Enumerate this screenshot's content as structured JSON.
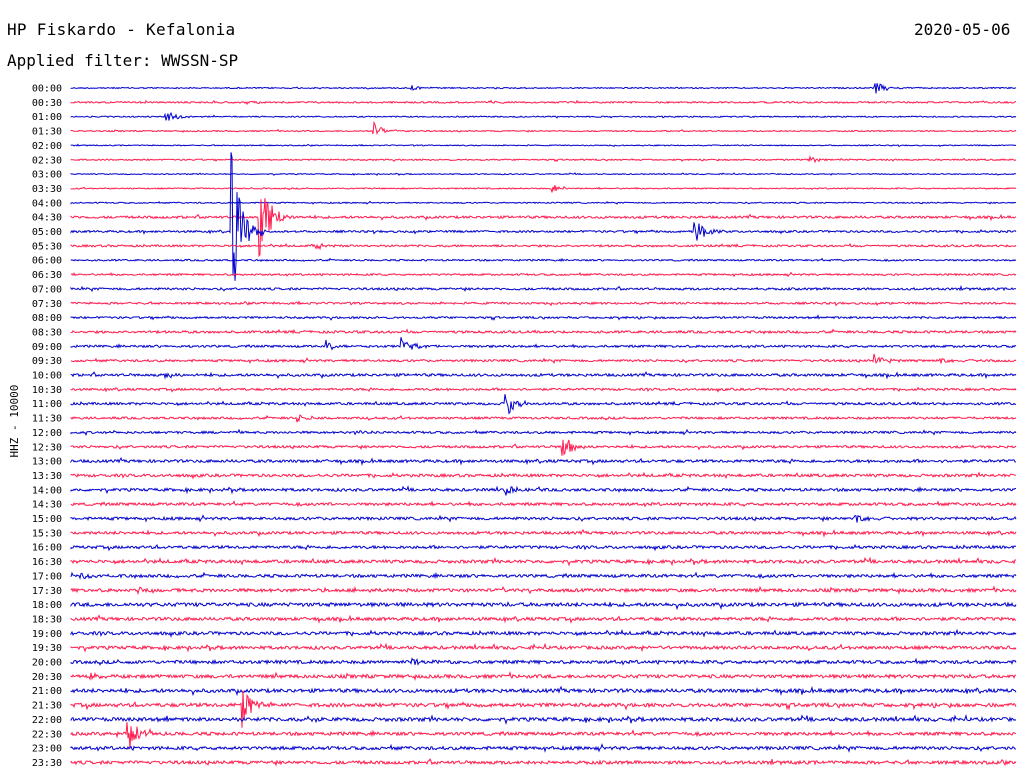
{
  "header": {
    "station": "HP Fiskardo - Kefalonia",
    "date": "2020-05-06",
    "filter": "Applied filter: WWSSN-SP",
    "channel": "HHZ - 10000"
  },
  "colors": {
    "odd": "#0000cc",
    "even": "#ff1a4d"
  },
  "chart_data": {
    "type": "line",
    "title": "HP Fiskardo - Kefalonia",
    "ylabel": "HHZ - 10000",
    "categories": [
      "00:00",
      "00:30",
      "01:00",
      "01:30",
      "02:00",
      "02:30",
      "03:00",
      "03:30",
      "04:00",
      "04:30",
      "05:00",
      "05:30",
      "06:00",
      "06:30",
      "07:00",
      "07:30",
      "08:00",
      "08:30",
      "09:00",
      "09:30",
      "10:00",
      "10:30",
      "11:00",
      "11:30",
      "12:00",
      "12:30",
      "13:00",
      "13:30",
      "14:00",
      "14:30",
      "15:00",
      "15:30",
      "16:00",
      "16:30",
      "17:00",
      "17:30",
      "18:00",
      "18:30",
      "19:00",
      "19:30",
      "20:00",
      "20:30",
      "21:00",
      "21:30",
      "22:00",
      "22:30",
      "23:00",
      "23:30"
    ],
    "noise": [
      0.6,
      0.8,
      0.6,
      0.6,
      0.5,
      0.7,
      0.5,
      0.6,
      0.6,
      1.2,
      1.0,
      1.0,
      0.8,
      0.9,
      1.1,
      1.0,
      1.0,
      1.2,
      1.1,
      1.1,
      1.3,
      1.1,
      1.2,
      1.1,
      1.1,
      1.2,
      1.4,
      1.4,
      1.4,
      1.4,
      1.4,
      1.4,
      1.4,
      1.6,
      1.5,
      1.6,
      1.8,
      1.6,
      1.6,
      1.6,
      1.6,
      1.7,
      1.8,
      1.8,
      1.8,
      1.6,
      1.6,
      1.6
    ],
    "events": [
      {
        "row": 0,
        "t": 0.36,
        "amp": 3
      },
      {
        "row": 0,
        "t": 0.85,
        "amp": 8
      },
      {
        "row": 1,
        "t": 0.19,
        "amp": 2
      },
      {
        "row": 1,
        "t": 0.44,
        "amp": 2
      },
      {
        "row": 2,
        "t": 0.1,
        "amp": 7
      },
      {
        "row": 3,
        "t": 0.32,
        "amp": 9
      },
      {
        "row": 5,
        "t": 0.78,
        "amp": 5
      },
      {
        "row": 7,
        "t": 0.51,
        "amp": 5
      },
      {
        "row": 9,
        "t": 0.2,
        "amp": 54
      },
      {
        "row": 10,
        "t": 0.17,
        "amp": 80
      },
      {
        "row": 10,
        "t": 0.66,
        "amp": 18
      },
      {
        "row": 11,
        "t": 0.26,
        "amp": 4
      },
      {
        "row": 18,
        "t": 0.27,
        "amp": 7
      },
      {
        "row": 18,
        "t": 0.35,
        "amp": 9
      },
      {
        "row": 19,
        "t": 0.85,
        "amp": 7
      },
      {
        "row": 19,
        "t": 0.92,
        "amp": 3
      },
      {
        "row": 20,
        "t": 0.1,
        "amp": 4
      },
      {
        "row": 22,
        "t": 0.46,
        "amp": 15
      },
      {
        "row": 23,
        "t": 0.24,
        "amp": 4
      },
      {
        "row": 24,
        "t": 0.3,
        "amp": 3
      },
      {
        "row": 25,
        "t": 0.52,
        "amp": 14
      },
      {
        "row": 28,
        "t": 0.46,
        "amp": 7
      },
      {
        "row": 30,
        "t": 0.83,
        "amp": 5
      },
      {
        "row": 34,
        "t": 0.01,
        "amp": 3
      },
      {
        "row": 35,
        "t": 0.07,
        "amp": 3
      },
      {
        "row": 40,
        "t": 0.36,
        "amp": 6
      },
      {
        "row": 41,
        "t": 0.02,
        "amp": 3
      },
      {
        "row": 43,
        "t": 0.18,
        "amp": 25
      },
      {
        "row": 44,
        "t": 0.25,
        "amp": 4
      },
      {
        "row": 45,
        "t": 0.06,
        "amp": 22
      }
    ]
  }
}
